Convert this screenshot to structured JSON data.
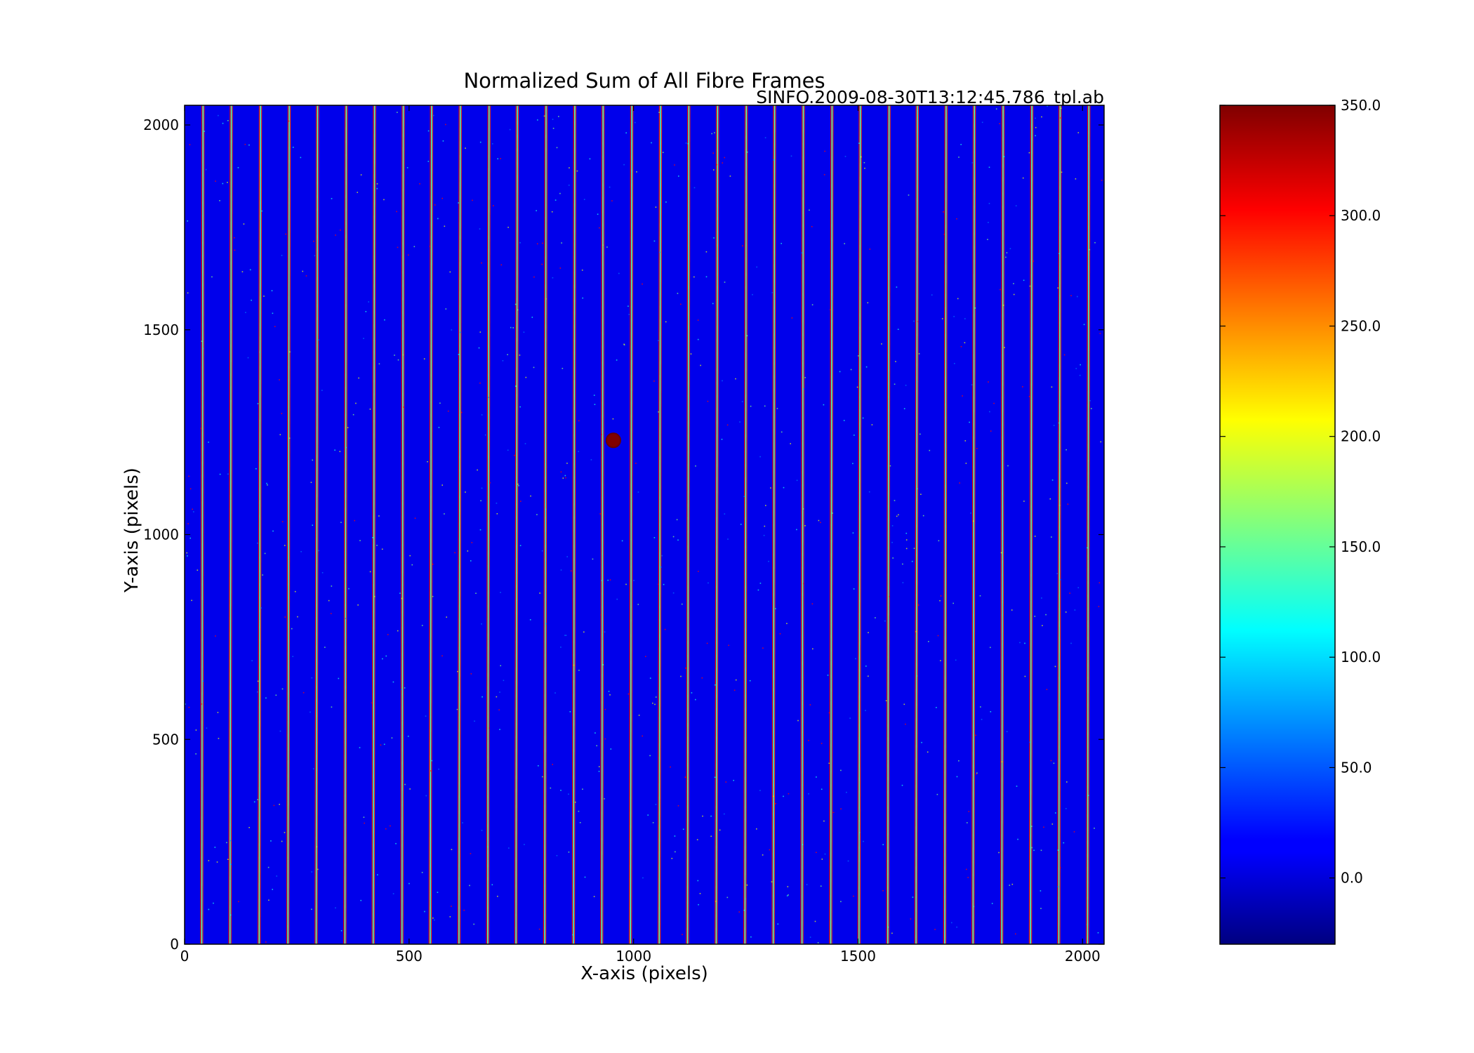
{
  "chart_data": {
    "type": "heatmap",
    "title": "Normalized Sum of All Fibre Frames",
    "subtitle": "SINFO.2009-08-30T13:12:45.786_tpl.ab",
    "xlabel": "X-axis (pixels)",
    "ylabel": "Y-axis (pixels)",
    "xlim": [
      0,
      2048
    ],
    "ylim": [
      0,
      2048
    ],
    "x_ticks": [
      0,
      500,
      1000,
      1500,
      2000
    ],
    "y_ticks": [
      0,
      500,
      1000,
      1500,
      2000
    ],
    "grid": false,
    "colormap": "jet",
    "background_value": 10,
    "colorbar": {
      "range": [
        -30,
        350
      ],
      "ticks": [
        0.0,
        50.0,
        100.0,
        150.0,
        200.0,
        250.0,
        300.0,
        350.0
      ],
      "tick_labels": [
        "0.0",
        "50.0",
        "100.0",
        "150.0",
        "200.0",
        "250.0",
        "300.0",
        "350.0"
      ]
    },
    "fibre_traces": {
      "x_at_bottom": [
        38,
        101,
        166,
        230,
        293,
        357,
        420,
        484,
        547,
        611,
        675,
        738,
        802,
        866,
        929,
        993,
        1057,
        1120,
        1184,
        1248,
        1311,
        1375,
        1439,
        1502,
        1566,
        1629,
        1693,
        1756,
        1820,
        1884,
        1947,
        2011
      ],
      "x_at_top": [
        41,
        104,
        169,
        233,
        296,
        360,
        423,
        487,
        550,
        614,
        678,
        741,
        805,
        869,
        932,
        996,
        1060,
        1123,
        1187,
        1251,
        1314,
        1378,
        1442,
        1505,
        1569,
        1632,
        1696,
        1759,
        1823,
        1887,
        1950,
        2014
      ]
    },
    "hot_spot": {
      "x": 955,
      "y": 1230,
      "value": 350
    }
  }
}
